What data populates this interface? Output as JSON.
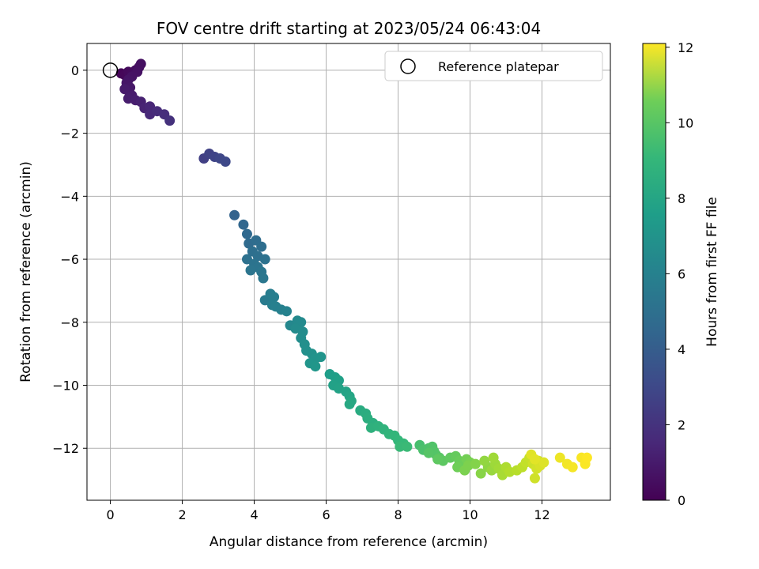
{
  "chart_data": {
    "type": "scatter",
    "title": "FOV centre drift starting at 2023/05/24 06:43:04",
    "xlabel": "Angular distance from reference (arcmin)",
    "ylabel": "Rotation from reference (arcmin)",
    "xlim": [
      -0.65,
      13.9
    ],
    "ylim": [
      -13.65,
      0.85
    ],
    "xticks": [
      0,
      2,
      4,
      6,
      8,
      10,
      12
    ],
    "yticks": [
      0,
      -2,
      -4,
      -6,
      -8,
      -10,
      -12
    ],
    "grid": true,
    "legend": {
      "position": "top-right",
      "entries": [
        "Reference platepar"
      ]
    },
    "reference_point": {
      "x": 0,
      "y": 0
    },
    "colorbar": {
      "label": "Hours from first FF file",
      "colormap": "viridis",
      "range": [
        0,
        12.1
      ],
      "ticks": [
        0,
        2,
        4,
        6,
        8,
        10,
        12
      ]
    },
    "series": [
      {
        "points": [
          {
            "x": 0.3,
            "y": -0.1,
            "t": 0.1
          },
          {
            "x": 0.4,
            "y": -0.15,
            "t": 0.2
          },
          {
            "x": 0.5,
            "y": -0.05,
            "t": 0.3
          },
          {
            "x": 0.6,
            "y": -0.1,
            "t": 0.35
          },
          {
            "x": 0.7,
            "y": 0.0,
            "t": 0.4
          },
          {
            "x": 0.8,
            "y": 0.1,
            "t": 0.45
          },
          {
            "x": 0.85,
            "y": 0.2,
            "t": 0.5
          },
          {
            "x": 0.75,
            "y": -0.05,
            "t": 0.55
          },
          {
            "x": 0.6,
            "y": -0.2,
            "t": 0.6
          },
          {
            "x": 0.5,
            "y": -0.3,
            "t": 0.65
          },
          {
            "x": 0.45,
            "y": -0.4,
            "t": 0.7
          },
          {
            "x": 0.55,
            "y": -0.55,
            "t": 0.75
          },
          {
            "x": 0.5,
            "y": -0.65,
            "t": 0.8
          },
          {
            "x": 0.4,
            "y": -0.6,
            "t": 0.85
          },
          {
            "x": 0.6,
            "y": -0.8,
            "t": 0.9
          },
          {
            "x": 0.5,
            "y": -0.9,
            "t": 0.95
          },
          {
            "x": 0.7,
            "y": -0.95,
            "t": 1.0
          },
          {
            "x": 0.85,
            "y": -1.0,
            "t": 1.1
          },
          {
            "x": 0.95,
            "y": -1.2,
            "t": 1.2
          },
          {
            "x": 1.1,
            "y": -1.15,
            "t": 1.3
          },
          {
            "x": 1.1,
            "y": -1.4,
            "t": 1.4
          },
          {
            "x": 1.3,
            "y": -1.3,
            "t": 1.5
          },
          {
            "x": 1.5,
            "y": -1.4,
            "t": 1.6
          },
          {
            "x": 1.65,
            "y": -1.6,
            "t": 1.7
          },
          {
            "x": 2.6,
            "y": -2.8,
            "t": 2.3
          },
          {
            "x": 2.75,
            "y": -2.65,
            "t": 2.4
          },
          {
            "x": 2.9,
            "y": -2.75,
            "t": 2.5
          },
          {
            "x": 3.05,
            "y": -2.8,
            "t": 2.6
          },
          {
            "x": 3.2,
            "y": -2.9,
            "t": 2.7
          },
          {
            "x": 3.45,
            "y": -4.6,
            "t": 3.8
          },
          {
            "x": 3.7,
            "y": -4.9,
            "t": 4.0
          },
          {
            "x": 3.8,
            "y": -5.2,
            "t": 4.1
          },
          {
            "x": 3.85,
            "y": -5.5,
            "t": 4.2
          },
          {
            "x": 4.05,
            "y": -5.4,
            "t": 4.3
          },
          {
            "x": 4.2,
            "y": -5.6,
            "t": 4.35
          },
          {
            "x": 3.95,
            "y": -5.75,
            "t": 4.4
          },
          {
            "x": 4.1,
            "y": -5.9,
            "t": 4.45
          },
          {
            "x": 3.8,
            "y": -6.0,
            "t": 4.5
          },
          {
            "x": 4.3,
            "y": -6.0,
            "t": 4.55
          },
          {
            "x": 4.0,
            "y": -6.15,
            "t": 4.6
          },
          {
            "x": 4.1,
            "y": -6.25,
            "t": 4.65
          },
          {
            "x": 3.9,
            "y": -6.35,
            "t": 4.7
          },
          {
            "x": 4.2,
            "y": -6.4,
            "t": 4.75
          },
          {
            "x": 4.25,
            "y": -6.6,
            "t": 4.8
          },
          {
            "x": 4.3,
            "y": -7.3,
            "t": 5.0
          },
          {
            "x": 4.45,
            "y": -7.1,
            "t": 5.1
          },
          {
            "x": 4.55,
            "y": -7.2,
            "t": 5.15
          },
          {
            "x": 4.5,
            "y": -7.45,
            "t": 5.2
          },
          {
            "x": 4.6,
            "y": -7.5,
            "t": 5.25
          },
          {
            "x": 4.75,
            "y": -7.6,
            "t": 5.3
          },
          {
            "x": 4.9,
            "y": -7.65,
            "t": 5.4
          },
          {
            "x": 5.0,
            "y": -8.1,
            "t": 5.6
          },
          {
            "x": 5.2,
            "y": -7.95,
            "t": 5.7
          },
          {
            "x": 5.3,
            "y": -8.0,
            "t": 5.75
          },
          {
            "x": 5.15,
            "y": -8.2,
            "t": 5.8
          },
          {
            "x": 5.35,
            "y": -8.3,
            "t": 5.85
          },
          {
            "x": 5.3,
            "y": -8.5,
            "t": 5.9
          },
          {
            "x": 5.4,
            "y": -8.7,
            "t": 6.0
          },
          {
            "x": 5.45,
            "y": -8.9,
            "t": 6.05
          },
          {
            "x": 5.6,
            "y": -9.0,
            "t": 6.1
          },
          {
            "x": 5.7,
            "y": -9.15,
            "t": 6.2
          },
          {
            "x": 5.85,
            "y": -9.1,
            "t": 6.25
          },
          {
            "x": 5.55,
            "y": -9.3,
            "t": 6.3
          },
          {
            "x": 5.7,
            "y": -9.4,
            "t": 6.35
          },
          {
            "x": 6.1,
            "y": -9.65,
            "t": 6.7
          },
          {
            "x": 6.25,
            "y": -9.75,
            "t": 6.8
          },
          {
            "x": 6.35,
            "y": -9.85,
            "t": 6.85
          },
          {
            "x": 6.2,
            "y": -10.0,
            "t": 6.9
          },
          {
            "x": 6.35,
            "y": -10.1,
            "t": 6.95
          },
          {
            "x": 6.55,
            "y": -10.2,
            "t": 7.0
          },
          {
            "x": 6.65,
            "y": -10.35,
            "t": 7.1
          },
          {
            "x": 6.7,
            "y": -10.5,
            "t": 7.2
          },
          {
            "x": 6.65,
            "y": -10.6,
            "t": 7.25
          },
          {
            "x": 6.95,
            "y": -10.8,
            "t": 7.4
          },
          {
            "x": 7.1,
            "y": -10.9,
            "t": 7.5
          },
          {
            "x": 7.15,
            "y": -11.05,
            "t": 7.55
          },
          {
            "x": 7.3,
            "y": -11.2,
            "t": 7.6
          },
          {
            "x": 7.25,
            "y": -11.35,
            "t": 7.7
          },
          {
            "x": 7.45,
            "y": -11.3,
            "t": 7.75
          },
          {
            "x": 7.6,
            "y": -11.4,
            "t": 7.8
          },
          {
            "x": 7.75,
            "y": -11.55,
            "t": 7.9
          },
          {
            "x": 7.9,
            "y": -11.6,
            "t": 7.95
          },
          {
            "x": 8.0,
            "y": -11.75,
            "t": 8.0
          },
          {
            "x": 8.15,
            "y": -11.85,
            "t": 8.1
          },
          {
            "x": 8.05,
            "y": -11.95,
            "t": 8.15
          },
          {
            "x": 8.25,
            "y": -11.95,
            "t": 8.2
          },
          {
            "x": 8.6,
            "y": -11.9,
            "t": 8.5
          },
          {
            "x": 8.7,
            "y": -12.05,
            "t": 8.6
          },
          {
            "x": 8.85,
            "y": -12.0,
            "t": 8.65
          },
          {
            "x": 8.95,
            "y": -11.95,
            "t": 8.7
          },
          {
            "x": 9.0,
            "y": -12.1,
            "t": 8.75
          },
          {
            "x": 9.05,
            "y": -12.2,
            "t": 8.8
          },
          {
            "x": 8.85,
            "y": -12.15,
            "t": 8.85
          },
          {
            "x": 9.15,
            "y": -12.3,
            "t": 8.9
          },
          {
            "x": 9.25,
            "y": -12.4,
            "t": 9.0
          },
          {
            "x": 9.1,
            "y": -12.35,
            "t": 9.05
          },
          {
            "x": 9.45,
            "y": -12.3,
            "t": 9.1
          },
          {
            "x": 9.6,
            "y": -12.25,
            "t": 9.2
          },
          {
            "x": 9.7,
            "y": -12.4,
            "t": 9.3
          },
          {
            "x": 9.8,
            "y": -12.5,
            "t": 9.35
          },
          {
            "x": 9.65,
            "y": -12.6,
            "t": 9.4
          },
          {
            "x": 9.9,
            "y": -12.35,
            "t": 9.5
          },
          {
            "x": 10.0,
            "y": -12.45,
            "t": 9.6
          },
          {
            "x": 9.85,
            "y": -12.7,
            "t": 9.65
          },
          {
            "x": 9.95,
            "y": -12.55,
            "t": 9.7
          },
          {
            "x": 10.15,
            "y": -12.5,
            "t": 9.8
          },
          {
            "x": 10.3,
            "y": -12.8,
            "t": 9.9
          },
          {
            "x": 10.5,
            "y": -12.6,
            "t": 10.0
          },
          {
            "x": 10.4,
            "y": -12.4,
            "t": 10.1
          },
          {
            "x": 10.6,
            "y": -12.7,
            "t": 10.2
          },
          {
            "x": 10.7,
            "y": -12.5,
            "t": 10.3
          },
          {
            "x": 10.65,
            "y": -12.3,
            "t": 10.35
          },
          {
            "x": 10.8,
            "y": -12.65,
            "t": 10.4
          },
          {
            "x": 10.9,
            "y": -12.85,
            "t": 10.5
          },
          {
            "x": 11.0,
            "y": -12.6,
            "t": 10.6
          },
          {
            "x": 11.1,
            "y": -12.75,
            "t": 10.7
          },
          {
            "x": 11.3,
            "y": -12.7,
            "t": 10.8
          },
          {
            "x": 11.45,
            "y": -12.6,
            "t": 10.9
          },
          {
            "x": 11.55,
            "y": -12.45,
            "t": 11.0
          },
          {
            "x": 11.65,
            "y": -12.3,
            "t": 11.1
          },
          {
            "x": 11.75,
            "y": -12.5,
            "t": 11.2
          },
          {
            "x": 11.8,
            "y": -12.95,
            "t": 11.25
          },
          {
            "x": 11.85,
            "y": -12.65,
            "t": 11.3
          },
          {
            "x": 11.9,
            "y": -12.4,
            "t": 11.35
          },
          {
            "x": 11.95,
            "y": -12.55,
            "t": 11.4
          },
          {
            "x": 12.05,
            "y": -12.45,
            "t": 11.5
          },
          {
            "x": 11.7,
            "y": -12.2,
            "t": 11.55
          },
          {
            "x": 11.8,
            "y": -12.35,
            "t": 11.6
          },
          {
            "x": 12.5,
            "y": -12.3,
            "t": 11.8
          },
          {
            "x": 12.7,
            "y": -12.5,
            "t": 11.9
          },
          {
            "x": 12.85,
            "y": -12.6,
            "t": 11.95
          },
          {
            "x": 13.1,
            "y": -12.3,
            "t": 12.0
          },
          {
            "x": 13.2,
            "y": -12.5,
            "t": 12.05
          },
          {
            "x": 13.25,
            "y": -12.3,
            "t": 12.1
          }
        ]
      }
    ]
  }
}
